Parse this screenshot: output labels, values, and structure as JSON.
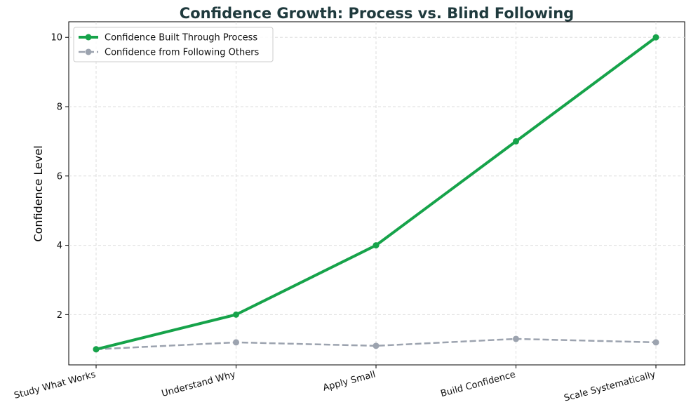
{
  "chart_data": {
    "type": "line",
    "title": "Confidence Growth: Process vs. Blind Following",
    "xlabel": "",
    "ylabel": "Confidence Level",
    "categories": [
      "Study What Works",
      "Understand Why",
      "Apply Small",
      "Build Confidence",
      "Scale Systematically"
    ],
    "series": [
      {
        "name": "Confidence Built Through Process",
        "values": [
          1,
          2,
          4,
          7,
          10
        ],
        "color": "#16a34a",
        "style": "solid"
      },
      {
        "name": "Confidence from Following Others",
        "values": [
          1,
          1.2,
          1.1,
          1.3,
          1.2
        ],
        "color": "#9ca3af",
        "style": "dashed"
      }
    ],
    "yticks": [
      2,
      4,
      6,
      8,
      10
    ],
    "ylim": [
      0.55,
      10.45
    ],
    "grid": true,
    "legend_position": "top-left",
    "title_color": "#1f3a3d"
  }
}
